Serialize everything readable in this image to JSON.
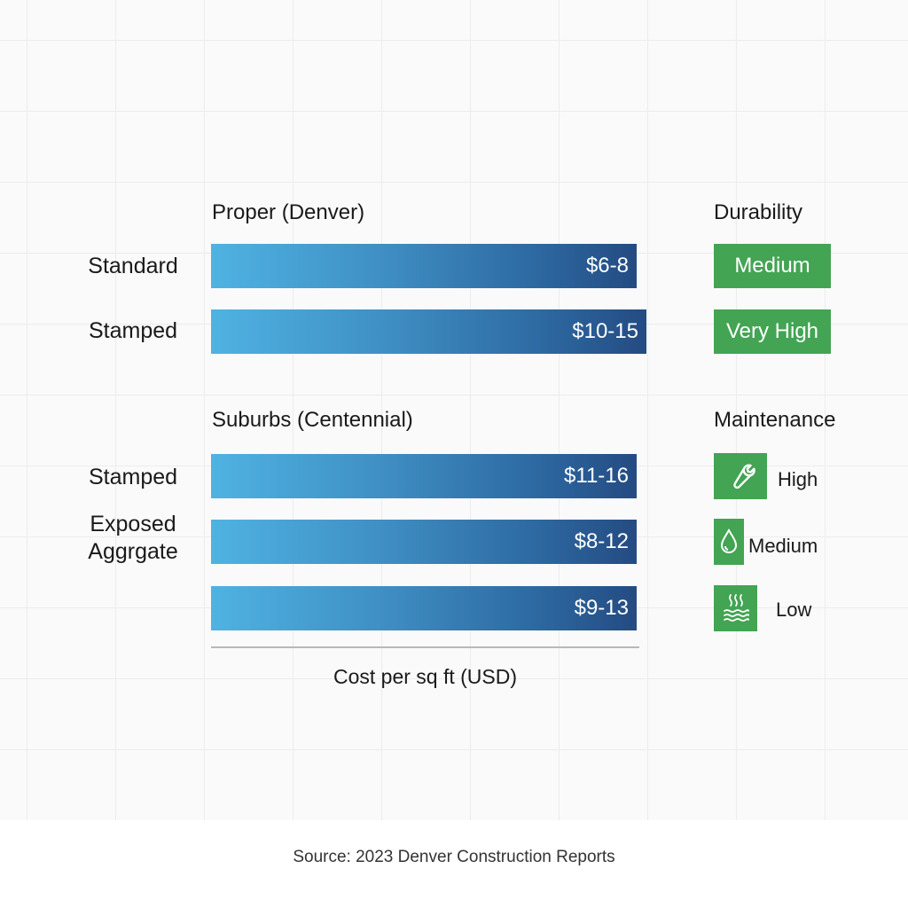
{
  "chart_data": {
    "type": "bar",
    "orientation": "horizontal",
    "groups": [
      {
        "title": "Proper (Denver)",
        "bars": [
          {
            "category": "Standard",
            "label": "$6-8",
            "min": 6,
            "max": 8
          },
          {
            "category": "Stamped",
            "label": "$10-15",
            "min": 10,
            "max": 15
          }
        ]
      },
      {
        "title": "Suburbs (Centennial)",
        "bars": [
          {
            "category": "Stamped",
            "label": "$11-16",
            "min": 11,
            "max": 16
          },
          {
            "category": "Exposed Aggrgate",
            "label": "$8-12",
            "min": 8,
            "max": 12
          },
          {
            "category": "",
            "label": "$9-13",
            "min": 9,
            "max": 13
          }
        ]
      }
    ],
    "xlabel": "Cost per sq ft (USD)",
    "bar_gradient": [
      "#4fb3e2",
      "#244b82"
    ],
    "grid": true
  },
  "durability": {
    "title": "Durability",
    "items": [
      "Medium",
      "Very High"
    ],
    "color": "#43a453"
  },
  "maintenance": {
    "title": "Maintenance",
    "items": [
      {
        "icon": "wrench-icon",
        "label": "High"
      },
      {
        "icon": "water-drop-icon",
        "label": "Medium"
      },
      {
        "icon": "steam-water-icon",
        "label": "Low"
      }
    ]
  },
  "source": "Source: 2023 Denver Construction Reports"
}
